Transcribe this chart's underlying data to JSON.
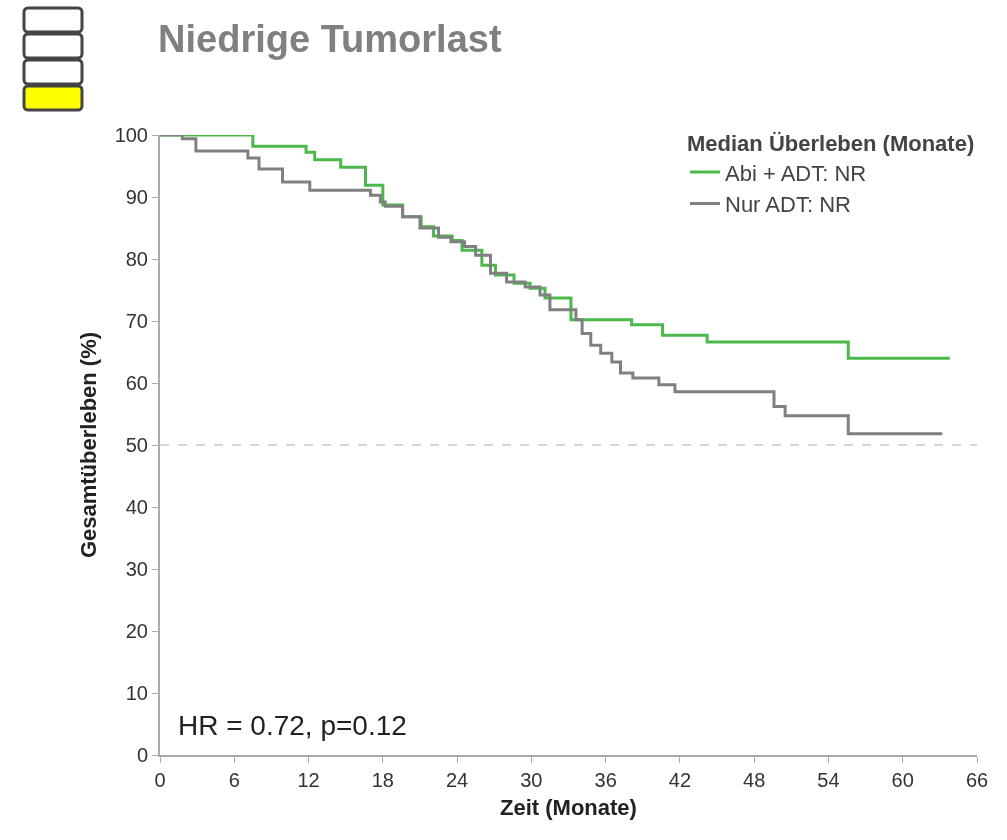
{
  "chart_data": {
    "type": "step",
    "title": "Niedrige Tumorlast",
    "xlabel": "Zeit (Monate)",
    "ylabel": "Gesamtüberleben (%)",
    "legend_title": "Median Überleben (Monate)",
    "legend": "top right",
    "grid": false,
    "line_style": "solid",
    "marker": "none",
    "xlim": [
      0,
      66
    ],
    "xticks": [
      0,
      6,
      12,
      18,
      24,
      30,
      36,
      42,
      48,
      54,
      60,
      66
    ],
    "ylim": [
      0,
      100
    ],
    "yticks": [
      0,
      10,
      20,
      30,
      40,
      50,
      60,
      70,
      80,
      90,
      100
    ],
    "series": [
      {
        "name": "Abi + ADT: NR",
        "color": "#4cb84c",
        "x": [
          0,
          7.5,
          11.8,
          12.5,
          14.6,
          16.6,
          18,
          19.6,
          21.1,
          22.1,
          23.6,
          24.4,
          26,
          27.1,
          28.6,
          29.9,
          31.1,
          33.2,
          38.1,
          40.6,
          44.2,
          55.6,
          63.8
        ],
        "values": [
          100,
          98.2,
          97.2,
          96,
          94.8,
          91.9,
          88.7,
          86.8,
          85.2,
          83.7,
          83,
          81.4,
          79,
          77.4,
          76.1,
          75.3,
          73.7,
          70.2,
          69.4,
          67.7,
          66.6,
          64,
          64
        ]
      },
      {
        "name": "Nur ADT: NR",
        "color": "#808080",
        "x": [
          0,
          1.8,
          2.9,
          7.1,
          8,
          9.9,
          12.1,
          17,
          17.8,
          18.2,
          19.6,
          21,
          22.5,
          23.5,
          24.6,
          25.5,
          26.7,
          28,
          29.5,
          30.7,
          31.5,
          33.6,
          34.1,
          34.8,
          35.6,
          36.5,
          37.2,
          38.2,
          40.3,
          41.6,
          49.6,
          50.5,
          55.6,
          63.2
        ],
        "values": [
          100,
          99.4,
          97.4,
          96.3,
          94.5,
          92.4,
          91.1,
          90.3,
          89.2,
          88.5,
          86.8,
          85,
          83.5,
          82.8,
          82,
          80.6,
          77.7,
          76.3,
          75.5,
          74.2,
          71.8,
          70.2,
          68,
          66.1,
          64.8,
          63.4,
          61.6,
          60.8,
          59.7,
          58.6,
          56.2,
          54.7,
          51.8,
          51.8
        ]
      }
    ],
    "ref_lines": [
      {
        "axis": "y",
        "value": 50,
        "color": "#c8c8c8",
        "line_style": "dashed"
      }
    ],
    "annotations": [
      "HR = 0.72, p=0.12"
    ]
  }
}
